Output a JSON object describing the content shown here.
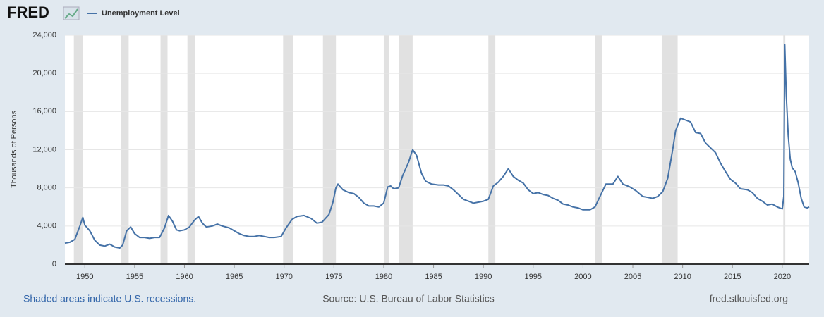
{
  "chart_data": {
    "type": "line",
    "logo": "FRED",
    "ylabel": "Thousands of Persons",
    "footnote": "Shaded areas indicate U.S. recessions.",
    "source": "Source: U.S. Bureau of Labor Statistics",
    "url": "fred.stlouisfed.org",
    "xlim": [
      1948,
      2022.7
    ],
    "xticks": [
      1950,
      1955,
      1960,
      1965,
      1970,
      1975,
      1980,
      1985,
      1990,
      1995,
      2000,
      2005,
      2010,
      2015,
      2020
    ],
    "ylim": [
      0,
      24000
    ],
    "yticks": [
      0,
      {
        "value": 4000,
        "label": "4,000"
      },
      {
        "value": 8000,
        "label": "8,000"
      },
      {
        "value": 12000,
        "label": "12,000"
      },
      {
        "value": 16000,
        "label": "16,000"
      },
      {
        "value": 20000,
        "label": "20,000"
      },
      {
        "value": 24000,
        "label": "24,000"
      }
    ],
    "grid": true,
    "recessions": [
      [
        1948.9,
        1949.8
      ],
      [
        1953.6,
        1954.4
      ],
      [
        1957.6,
        1958.3
      ],
      [
        1960.3,
        1961.1
      ],
      [
        1969.9,
        1970.9
      ],
      [
        1973.9,
        1975.2
      ],
      [
        1980.0,
        1980.5
      ],
      [
        1981.5,
        1982.9
      ],
      [
        1990.5,
        1991.2
      ],
      [
        2001.2,
        2001.9
      ],
      [
        2007.9,
        2009.5
      ],
      [
        2020.1,
        2020.3
      ]
    ],
    "x": [
      1948.0,
      1948.5,
      1949.0,
      1949.5,
      1949.8,
      1950.0,
      1950.5,
      1951.0,
      1951.5,
      1952.0,
      1952.5,
      1953.0,
      1953.5,
      1953.8,
      1954.2,
      1954.6,
      1955.0,
      1955.5,
      1956.0,
      1956.5,
      1957.0,
      1957.5,
      1958.0,
      1958.4,
      1958.8,
      1959.2,
      1959.5,
      1960.0,
      1960.5,
      1961.0,
      1961.4,
      1961.8,
      1962.2,
      1962.8,
      1963.3,
      1963.8,
      1964.5,
      1965.0,
      1965.5,
      1966.0,
      1966.5,
      1967.0,
      1967.5,
      1968.0,
      1968.5,
      1969.0,
      1969.7,
      1970.2,
      1970.8,
      1971.3,
      1972.0,
      1972.7,
      1973.3,
      1973.8,
      1974.5,
      1974.9,
      1975.2,
      1975.4,
      1975.9,
      1976.5,
      1977.0,
      1977.5,
      1978.0,
      1978.5,
      1979.0,
      1979.5,
      1980.0,
      1980.4,
      1980.7,
      1981.0,
      1981.5,
      1981.9,
      1982.5,
      1982.9,
      1983.3,
      1983.8,
      1984.2,
      1984.8,
      1985.5,
      1986.0,
      1986.5,
      1987.0,
      1987.5,
      1988.0,
      1988.5,
      1989.0,
      1989.5,
      1990.0,
      1990.5,
      1991.0,
      1991.5,
      1992.0,
      1992.5,
      1993.0,
      1993.5,
      1994.0,
      1994.5,
      1995.0,
      1995.5,
      1996.0,
      1996.5,
      1997.0,
      1997.5,
      1998.0,
      1998.5,
      1999.0,
      1999.5,
      2000.0,
      2000.7,
      2001.2,
      2001.8,
      2002.3,
      2003.0,
      2003.5,
      2004.0,
      2004.7,
      2005.3,
      2006.0,
      2006.5,
      2007.0,
      2007.5,
      2008.0,
      2008.5,
      2009.0,
      2009.3,
      2009.8,
      2010.3,
      2010.8,
      2011.3,
      2011.8,
      2012.3,
      2012.8,
      2013.3,
      2013.8,
      2014.3,
      2014.8,
      2015.3,
      2015.8,
      2016.5,
      2017.0,
      2017.5,
      2018.0,
      2018.5,
      2019.0,
      2019.5,
      2020.0,
      2020.15,
      2020.25,
      2020.4,
      2020.6,
      2020.8,
      2021.0,
      2021.3,
      2021.6,
      2021.9,
      2022.2,
      2022.5,
      2022.7
    ],
    "series": [
      {
        "name": "Unemployment Level",
        "color": "#4572a7",
        "values": [
          2200,
          2300,
          2600,
          4000,
          4900,
          4100,
          3500,
          2500,
          2000,
          1900,
          2100,
          1800,
          1700,
          2000,
          3500,
          3900,
          3200,
          2800,
          2800,
          2700,
          2800,
          2800,
          3800,
          5100,
          4500,
          3600,
          3500,
          3600,
          3900,
          4600,
          5000,
          4300,
          3900,
          4000,
          4200,
          4000,
          3800,
          3500,
          3200,
          3000,
          2900,
          2900,
          3000,
          2900,
          2800,
          2800,
          2900,
          3800,
          4700,
          5000,
          5100,
          4800,
          4300,
          4400,
          5200,
          6500,
          8000,
          8400,
          7800,
          7500,
          7400,
          7000,
          6400,
          6100,
          6100,
          6000,
          6400,
          8100,
          8200,
          7900,
          8000,
          9300,
          10700,
          12000,
          11400,
          9500,
          8700,
          8400,
          8300,
          8300,
          8200,
          7800,
          7300,
          6800,
          6600,
          6400,
          6500,
          6600,
          6800,
          8200,
          8600,
          9200,
          10000,
          9200,
          8800,
          8500,
          7800,
          7400,
          7500,
          7300,
          7200,
          6900,
          6700,
          6300,
          6200,
          6000,
          5900,
          5700,
          5700,
          6000,
          7300,
          8400,
          8400,
          9200,
          8400,
          8100,
          7700,
          7100,
          7000,
          6900,
          7100,
          7600,
          9000,
          12000,
          14000,
          15300,
          15100,
          14900,
          13800,
          13700,
          12700,
          12200,
          11700,
          10600,
          9700,
          8900,
          8500,
          7900,
          7800,
          7500,
          6900,
          6600,
          6200,
          6300,
          6000,
          5800,
          7100,
          23000,
          17800,
          13500,
          11000,
          10100,
          9700,
          8500,
          6900,
          6000,
          5900,
          6000
        ]
      }
    ]
  }
}
